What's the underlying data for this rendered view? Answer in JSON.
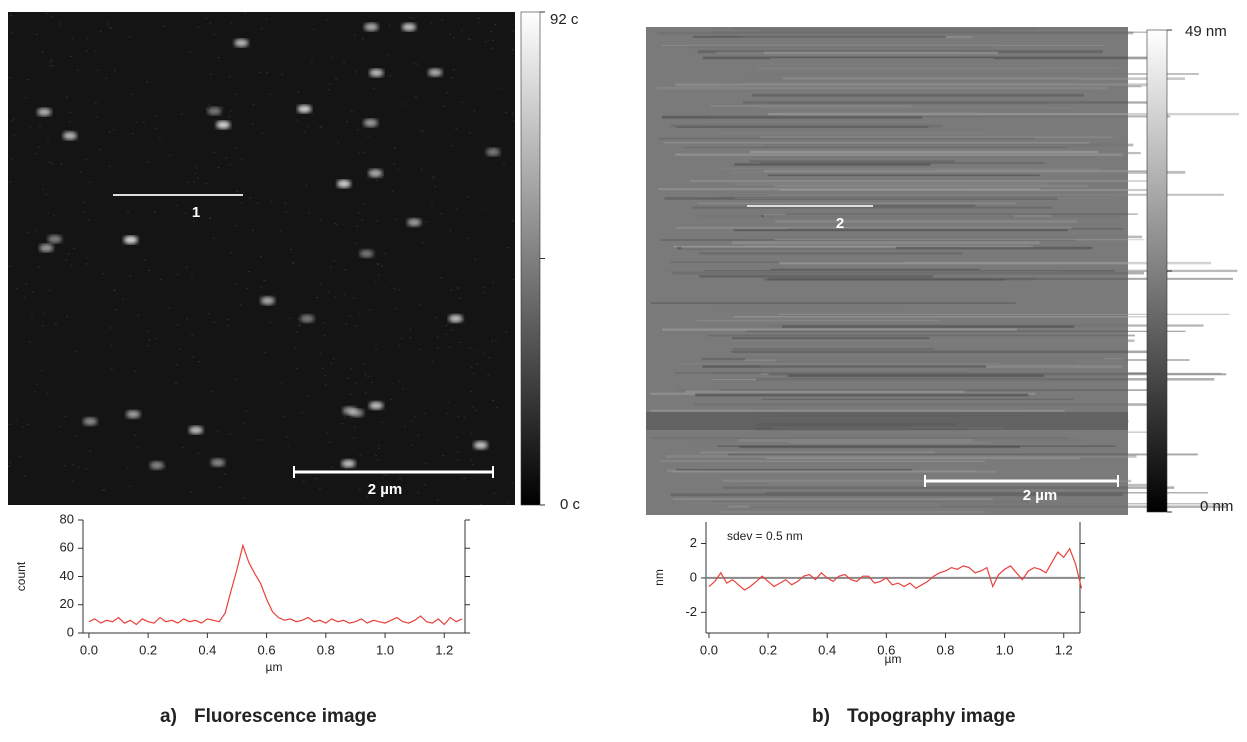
{
  "panels": [
    {
      "label": "a)",
      "caption": "Fluorescence image",
      "colorbar_max": "92 c",
      "colorbar_min": "0 c",
      "profile_label": "1",
      "scalebar": "2 µm"
    },
    {
      "label": "b)",
      "caption": "Topography image",
      "colorbar_max": "49 nm",
      "colorbar_min": "0 nm",
      "profile_label": "2",
      "scalebar": "2 µm"
    }
  ],
  "chart_data": [
    {
      "type": "line",
      "xlabel": "µm",
      "ylabel": "count",
      "color": "#e8413c",
      "x": [
        0,
        0.02,
        0.04,
        0.06,
        0.08,
        0.1,
        0.12,
        0.14,
        0.16,
        0.18,
        0.2,
        0.22,
        0.24,
        0.26,
        0.28,
        0.3,
        0.32,
        0.34,
        0.36,
        0.38,
        0.4,
        0.42,
        0.44,
        0.46,
        0.48,
        0.5,
        0.52,
        0.54,
        0.56,
        0.58,
        0.6,
        0.62,
        0.64,
        0.66,
        0.68,
        0.7,
        0.72,
        0.74,
        0.76,
        0.78,
        0.8,
        0.82,
        0.84,
        0.86,
        0.88,
        0.9,
        0.92,
        0.94,
        0.96,
        0.98,
        1,
        1.02,
        1.04,
        1.06,
        1.08,
        1.1,
        1.12,
        1.14,
        1.16,
        1.18,
        1.2,
        1.22,
        1.24,
        1.26
      ],
      "values": [
        8,
        10,
        7,
        9,
        8,
        11,
        7,
        9,
        6,
        10,
        8,
        7,
        11,
        8,
        9,
        7,
        10,
        8,
        9,
        7,
        10,
        9,
        8,
        14,
        30,
        45,
        62,
        50,
        42,
        35,
        24,
        15,
        11,
        9,
        10,
        8,
        9,
        11,
        8,
        9,
        7,
        10,
        8,
        9,
        7,
        8,
        10,
        7,
        9,
        8,
        7,
        9,
        11,
        8,
        7,
        9,
        12,
        8,
        7,
        10,
        6,
        11,
        8,
        10
      ],
      "xlim": [
        -0.02,
        1.27
      ],
      "ylim": [
        0,
        80
      ],
      "xticks": [
        {
          "value": 0,
          "label": "0.0"
        },
        0.2,
        0.4,
        0.6,
        0.8,
        {
          "value": 1,
          "label": "1.0"
        },
        1.2
      ],
      "yticks": [
        0,
        20,
        40,
        60,
        80
      ]
    },
    {
      "type": "line",
      "xlabel": "µm",
      "ylabel": "nm",
      "color": "#e8413c",
      "annotation": "sdev = 0.5 nm",
      "reference_line": 0,
      "x": [
        0,
        0.02,
        0.04,
        0.06,
        0.08,
        0.1,
        0.12,
        0.14,
        0.16,
        0.18,
        0.2,
        0.22,
        0.24,
        0.26,
        0.28,
        0.3,
        0.32,
        0.34,
        0.36,
        0.38,
        0.4,
        0.42,
        0.44,
        0.46,
        0.48,
        0.5,
        0.52,
        0.54,
        0.56,
        0.58,
        0.6,
        0.62,
        0.64,
        0.66,
        0.68,
        0.7,
        0.72,
        0.74,
        0.76,
        0.78,
        0.8,
        0.82,
        0.84,
        0.86,
        0.88,
        0.9,
        0.92,
        0.94,
        0.96,
        0.98,
        1,
        1.02,
        1.04,
        1.06,
        1.08,
        1.1,
        1.12,
        1.14,
        1.16,
        1.18,
        1.2,
        1.22,
        1.24,
        1.26
      ],
      "values": [
        -0.5,
        -0.2,
        0.3,
        -0.3,
        -0.1,
        -0.4,
        -0.7,
        -0.5,
        -0.2,
        0.1,
        -0.2,
        -0.5,
        -0.3,
        -0.1,
        -0.4,
        -0.2,
        0.1,
        0.2,
        -0.1,
        0.3,
        0,
        -0.2,
        0.1,
        0.2,
        -0.1,
        -0.2,
        0.1,
        0.1,
        -0.3,
        -0.2,
        0,
        -0.4,
        -0.3,
        -0.5,
        -0.3,
        -0.6,
        -0.4,
        -0.2,
        0.1,
        0.3,
        0.4,
        0.6,
        0.5,
        0.7,
        0.6,
        0.3,
        0.4,
        0.6,
        -0.5,
        0.2,
        0.5,
        0.7,
        0.3,
        -0.1,
        0.4,
        0.6,
        0.5,
        0.3,
        0.9,
        1.5,
        1.2,
        1.7,
        0.8,
        -0.6
      ],
      "xlim": [
        -0.01,
        1.255
      ],
      "ylim": [
        -3.2,
        3.25
      ],
      "xticks": [
        {
          "value": 0,
          "label": "0.0"
        },
        0.2,
        0.4,
        0.6,
        0.8,
        {
          "value": 1,
          "label": "1.0"
        },
        1.2
      ],
      "yticks": [
        -2,
        0,
        2
      ]
    }
  ]
}
